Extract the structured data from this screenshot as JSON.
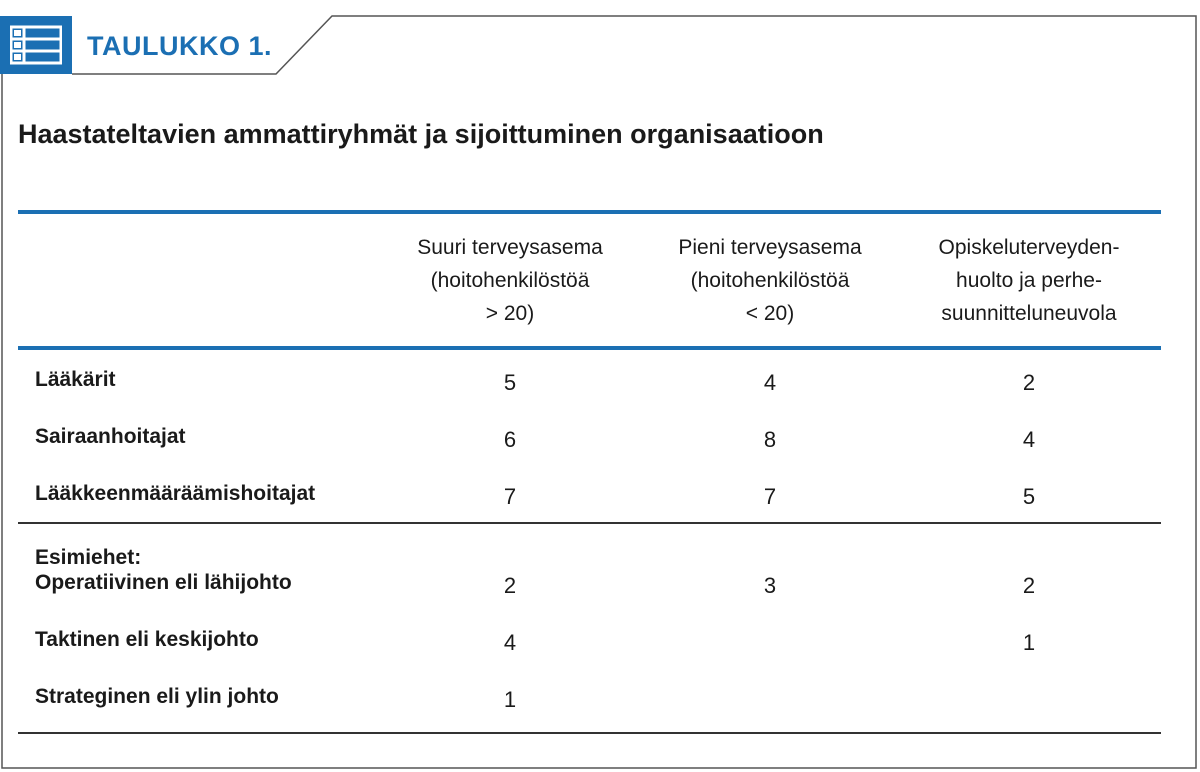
{
  "header": {
    "label": "TAULUKKO 1.",
    "icon": "table-list-icon",
    "accent_color": "#1b6fb3"
  },
  "title": "Haastateltavien ammattiryhmät ja sijoittuminen organisaatioon",
  "table": {
    "columns": [
      {
        "lines": [
          "Suuri terveysasema",
          "(hoitohenkilöstöä",
          "> 20)"
        ]
      },
      {
        "lines": [
          "Pieni terveysasema",
          "(hoitohenkilöstöä",
          "< 20)"
        ]
      },
      {
        "lines": [
          "Opiskeluterveyden-",
          "huolto ja perhe-",
          "suunnitteluneuvola"
        ]
      }
    ],
    "section1": [
      {
        "label": "Lääkärit",
        "values": [
          "5",
          "4",
          "2"
        ]
      },
      {
        "label": "Sairaanhoitajat",
        "values": [
          "6",
          "8",
          "4"
        ]
      },
      {
        "label": "Lääkkeenmääräämishoitajat",
        "values": [
          "7",
          "7",
          "5"
        ]
      }
    ],
    "section2_label": "Esimiehet:",
    "section2": [
      {
        "label": "Operatiivinen eli lähijohto",
        "values": [
          "2",
          "3",
          "2"
        ]
      },
      {
        "label": "Taktinen eli keskijohto",
        "values": [
          "4",
          "",
          "1"
        ]
      },
      {
        "label": "Strateginen eli ylin johto",
        "values": [
          "1",
          "",
          ""
        ]
      }
    ]
  }
}
